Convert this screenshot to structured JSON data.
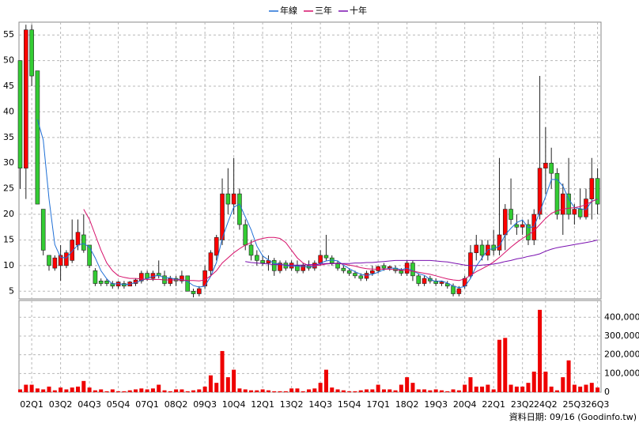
{
  "chart_data": {
    "type": "candlestick",
    "legend": [
      {
        "name": "年線",
        "color": "#1f6fd6"
      },
      {
        "name": "三年",
        "color": "#d6106a"
      },
      {
        "name": "十年",
        "color": "#7a10b0"
      }
    ],
    "footer": "資料日期: 09/16 (Goodinfo.tw)",
    "up_color": "#ff0000",
    "down_color": "#33cc33",
    "volume_color": "#ee0000",
    "categories": [
      null,
      null,
      "02Q1",
      null,
      null,
      null,
      null,
      "03Q2",
      null,
      null,
      null,
      null,
      "04Q3",
      null,
      null,
      null,
      null,
      "05Q4",
      null,
      null,
      null,
      null,
      "07Q1",
      null,
      null,
      null,
      null,
      "08Q2",
      null,
      null,
      null,
      null,
      "09Q3",
      null,
      null,
      null,
      null,
      "10Q4",
      null,
      null,
      null,
      null,
      "12Q1",
      null,
      null,
      null,
      null,
      "13Q2",
      null,
      null,
      null,
      null,
      "14Q3",
      null,
      null,
      null,
      null,
      "15Q4",
      null,
      null,
      null,
      null,
      "17Q1",
      null,
      null,
      null,
      null,
      "18Q2",
      null,
      null,
      null,
      null,
      "19Q3",
      null,
      null,
      null,
      null,
      "20Q4",
      null,
      null,
      null,
      null,
      "22Q1",
      null,
      null,
      null,
      null,
      "23Q2",
      null,
      null,
      null,
      "24Q2",
      null,
      null,
      null,
      null,
      "25Q3",
      null,
      null,
      null,
      "26Q3"
    ],
    "ohlc": [
      [
        50,
        50,
        25,
        29
      ],
      [
        29,
        57,
        23,
        56
      ],
      [
        56,
        57,
        45,
        47
      ],
      [
        48,
        48,
        22,
        22
      ],
      [
        21,
        21,
        12,
        13
      ],
      [
        12,
        12,
        9,
        10
      ],
      [
        9.5,
        12,
        9,
        11.5
      ],
      [
        10,
        14,
        7,
        12
      ],
      [
        10,
        13,
        9.5,
        12.5
      ],
      [
        11,
        19,
        10.5,
        15
      ],
      [
        14,
        19,
        13,
        16.5
      ],
      [
        16,
        20,
        12.5,
        13
      ],
      [
        14,
        14,
        9.5,
        10
      ],
      [
        9,
        9.5,
        6,
        6.5
      ],
      [
        7,
        7.5,
        6,
        6.5
      ],
      [
        7,
        7.5,
        6,
        6.5
      ],
      [
        6.5,
        7,
        5.5,
        6
      ],
      [
        6,
        7,
        5.5,
        6.8
      ],
      [
        6.5,
        7,
        5.5,
        6
      ],
      [
        6,
        7,
        6,
        6.8
      ],
      [
        6.5,
        7.5,
        6,
        7.2
      ],
      [
        7,
        9,
        6.5,
        8.5
      ],
      [
        8.5,
        9,
        7,
        7.5
      ],
      [
        7.5,
        9,
        7,
        8.5
      ],
      [
        8.5,
        11,
        7.5,
        8
      ],
      [
        8,
        9,
        6,
        6.5
      ],
      [
        6.5,
        8,
        6,
        7.5
      ],
      [
        7.5,
        8,
        6,
        7
      ],
      [
        7,
        9,
        6.5,
        8
      ],
      [
        8,
        8,
        5,
        5
      ],
      [
        5,
        5.5,
        3.8,
        4.5
      ],
      [
        4.5,
        6,
        4,
        5.5
      ],
      [
        6,
        10,
        5.5,
        9
      ],
      [
        9,
        13,
        8,
        12.5
      ],
      [
        12,
        16,
        11,
        15.5
      ],
      [
        15,
        27,
        14,
        24
      ],
      [
        24,
        29,
        20,
        22
      ],
      [
        22,
        31,
        20,
        24
      ],
      [
        24,
        25,
        17,
        18
      ],
      [
        18,
        19,
        13,
        14
      ],
      [
        14,
        15,
        11,
        12
      ],
      [
        12,
        13,
        10,
        11
      ],
      [
        11,
        12,
        10,
        10.5
      ],
      [
        10.5,
        12,
        9,
        11
      ],
      [
        11,
        11.5,
        8,
        9
      ],
      [
        9,
        11,
        8.5,
        10.5
      ],
      [
        10.5,
        11,
        9,
        9.5
      ],
      [
        9.5,
        11,
        9,
        10.5
      ],
      [
        10,
        11,
        8.5,
        9
      ],
      [
        9,
        10.5,
        8.5,
        10
      ],
      [
        10,
        11,
        9,
        9.5
      ],
      [
        9.5,
        11,
        9,
        10.5
      ],
      [
        10.5,
        13,
        10,
        12
      ],
      [
        12,
        16,
        11,
        11.5
      ],
      [
        11.5,
        12,
        10,
        10.5
      ],
      [
        10.5,
        11,
        9,
        9.5
      ],
      [
        9.5,
        10,
        8.5,
        9
      ],
      [
        9,
        9.5,
        8,
        8.5
      ],
      [
        8.5,
        9,
        7.5,
        8
      ],
      [
        8,
        8.5,
        7,
        7.5
      ],
      [
        7.5,
        9,
        7,
        8.5
      ],
      [
        8.5,
        10,
        8,
        9
      ],
      [
        9,
        10,
        8.5,
        9.8
      ],
      [
        10,
        10.5,
        9,
        9.5
      ],
      [
        9.5,
        10,
        9,
        9.8
      ],
      [
        9.5,
        10,
        8.5,
        9
      ],
      [
        9,
        9.5,
        8,
        8.5
      ],
      [
        8.5,
        11,
        8,
        10.5
      ],
      [
        10.5,
        11,
        7,
        8
      ],
      [
        8,
        8.5,
        6,
        6.5
      ],
      [
        6.5,
        8,
        6,
        7.5
      ],
      [
        7.5,
        8,
        6.5,
        7
      ],
      [
        7,
        7.5,
        6,
        6.5
      ],
      [
        6.5,
        7,
        6,
        6.8
      ],
      [
        6.5,
        7,
        5.5,
        6
      ],
      [
        6,
        6.5,
        4,
        4.5
      ],
      [
        4.5,
        6,
        4,
        5.5
      ],
      [
        6,
        8,
        5.5,
        7.5
      ],
      [
        8,
        14,
        7.5,
        12.5
      ],
      [
        12.5,
        16,
        11,
        14
      ],
      [
        14,
        15,
        11,
        12
      ],
      [
        12,
        15,
        11,
        14
      ],
      [
        14,
        17,
        12,
        13
      ],
      [
        13,
        31,
        12,
        16
      ],
      [
        16,
        22,
        13,
        21
      ],
      [
        21,
        27,
        18,
        19
      ],
      [
        18,
        20,
        16,
        17.5
      ],
      [
        17.5,
        19,
        16,
        18
      ],
      [
        18,
        19,
        14,
        15
      ],
      [
        15,
        21,
        14,
        20
      ],
      [
        20,
        47,
        19,
        29
      ],
      [
        29,
        37,
        24,
        30
      ],
      [
        30,
        33,
        25,
        28
      ],
      [
        28,
        29,
        19,
        20
      ],
      [
        20,
        26,
        16,
        24
      ],
      [
        24,
        31,
        19,
        20
      ],
      [
        20,
        22,
        18,
        21
      ],
      [
        21,
        25,
        19,
        19.5
      ],
      [
        19.5,
        25,
        19,
        23
      ],
      [
        23,
        31,
        19,
        27
      ],
      [
        27,
        29,
        20,
        22
      ]
    ],
    "volume": [
      15000,
      40000,
      40000,
      20000,
      15000,
      30000,
      10000,
      25000,
      15000,
      25000,
      30000,
      60000,
      25000,
      10000,
      15000,
      5000,
      15000,
      5000,
      5000,
      10000,
      15000,
      20000,
      15000,
      20000,
      40000,
      10000,
      5000,
      15000,
      15000,
      5000,
      10000,
      15000,
      30000,
      90000,
      50000,
      220000,
      80000,
      120000,
      20000,
      15000,
      10000,
      10000,
      15000,
      10000,
      5000,
      5000,
      5000,
      20000,
      20000,
      5000,
      15000,
      20000,
      50000,
      120000,
      25000,
      15000,
      10000,
      5000,
      5000,
      10000,
      15000,
      15000,
      40000,
      15000,
      15000,
      10000,
      40000,
      80000,
      50000,
      15000,
      15000,
      10000,
      15000,
      10000,
      5000,
      15000,
      10000,
      40000,
      80000,
      30000,
      30000,
      40000,
      15000,
      280000,
      290000,
      40000,
      30000,
      30000,
      50000,
      110000,
      440000,
      110000,
      30000,
      10000,
      80000,
      170000,
      40000,
      30000,
      40000,
      50000,
      25000
    ],
    "series": [
      {
        "name": "年線",
        "color": "#1f6fd6",
        "values": [
          null,
          null,
          null,
          38.5,
          34.5,
          23,
          14.1,
          11.6,
          11.5,
          12.8,
          14,
          14.3,
          13.6,
          11.5,
          9,
          7.4,
          6.4,
          6.5,
          6.3,
          6.4,
          6.7,
          7.1,
          7.5,
          7.9,
          8.1,
          7.6,
          7.6,
          7.3,
          7.3,
          6.9,
          6.1,
          5.8,
          6,
          7.9,
          10.6,
          15.3,
          18.5,
          21.4,
          22,
          19.5,
          17,
          13.8,
          11.9,
          11.1,
          10.4,
          10.3,
          10,
          9.9,
          9.9,
          9.8,
          9.8,
          9.8,
          10.5,
          10.9,
          11.1,
          10.9,
          10.1,
          9.4,
          8.8,
          8.3,
          8.1,
          8.3,
          8.7,
          9.2,
          9.5,
          9.5,
          9.2,
          9.5,
          9,
          8.4,
          8.1,
          7.3,
          6.9,
          7,
          6.6,
          6,
          5.7,
          5.9,
          7.5,
          9.9,
          11.5,
          13.1,
          13.3,
          13.8,
          16,
          17.3,
          18.4,
          18.9,
          17.4,
          17.6,
          20.5,
          23.5,
          26.8,
          26.8,
          25.5,
          23,
          21.3,
          21.1,
          20.9,
          22.6,
          22.9
        ]
      },
      {
        "name": "三年",
        "color": "#d6106a",
        "values": [
          null,
          null,
          null,
          null,
          null,
          null,
          null,
          null,
          null,
          null,
          null,
          21,
          19,
          16,
          13,
          10.5,
          9,
          8,
          7.7,
          7.5,
          7.5,
          7.4,
          7.3,
          7.3,
          7.3,
          7.2,
          7.2,
          7.2,
          7.2,
          7.1,
          7.1,
          7.0,
          7.2,
          8.0,
          9,
          10.5,
          11.5,
          12.5,
          13.3,
          14,
          14.5,
          15,
          15.3,
          15.5,
          15.5,
          15.3,
          14.5,
          13,
          11.5,
          10.5,
          10,
          10,
          10.1,
          10.3,
          10.4,
          10.4,
          10.3,
          10.1,
          9.9,
          9.6,
          9.4,
          9.3,
          9.3,
          9.3,
          9.3,
          9.2,
          9.1,
          9.1,
          8.9,
          8.7,
          8.5,
          8.3,
          8,
          7.7,
          7.4,
          7.2,
          7.1,
          7.4,
          8.1,
          8.8,
          9.4,
          10,
          10.7,
          11.6,
          12.6,
          13.6,
          14.5,
          15.3,
          16,
          16.8,
          18,
          19.2,
          20.2,
          20.7,
          21,
          21.2,
          21.3,
          21.5,
          21.9,
          22.5,
          23
        ]
      },
      {
        "name": "十年",
        "color": "#7a10b0",
        "values": [
          null,
          null,
          null,
          null,
          null,
          null,
          null,
          null,
          null,
          null,
          null,
          null,
          null,
          null,
          null,
          null,
          null,
          null,
          null,
          null,
          null,
          null,
          null,
          null,
          null,
          null,
          null,
          null,
          null,
          null,
          null,
          null,
          null,
          null,
          null,
          null,
          null,
          null,
          null,
          10.8,
          10.6,
          10.5,
          10.4,
          10.3,
          10.2,
          10.2,
          10.1,
          10.1,
          10.1,
          10.1,
          10.2,
          10.2,
          10.3,
          10.4,
          10.4,
          10.4,
          10.4,
          10.4,
          10.5,
          10.5,
          10.6,
          10.6,
          10.7,
          10.8,
          10.9,
          11,
          11,
          11,
          11,
          11,
          11,
          11,
          10.9,
          10.8,
          10.7,
          10.5,
          10.3,
          10.1,
          10,
          10,
          10.1,
          10.2,
          10.3,
          10.5,
          10.8,
          11,
          11.3,
          11.5,
          11.8,
          12,
          12.3,
          12.8,
          13.2,
          13.5,
          13.7,
          13.9,
          14.1,
          14.3,
          14.5,
          14.7,
          15
        ]
      }
    ],
    "ylim": [
      3.5,
      57.5
    ],
    "yticks": [
      5,
      10,
      15,
      20,
      25,
      30,
      35,
      40,
      45,
      50,
      55
    ],
    "y2lim": [
      0,
      490000
    ],
    "y2ticks": [
      0,
      {
        "value": 100000,
        "label": "100,000"
      },
      {
        "value": 200000,
        "label": "200,000"
      },
      {
        "value": 300000,
        "label": "300,000"
      },
      {
        "value": 400000,
        "label": "400,000"
      }
    ],
    "grid": true
  }
}
